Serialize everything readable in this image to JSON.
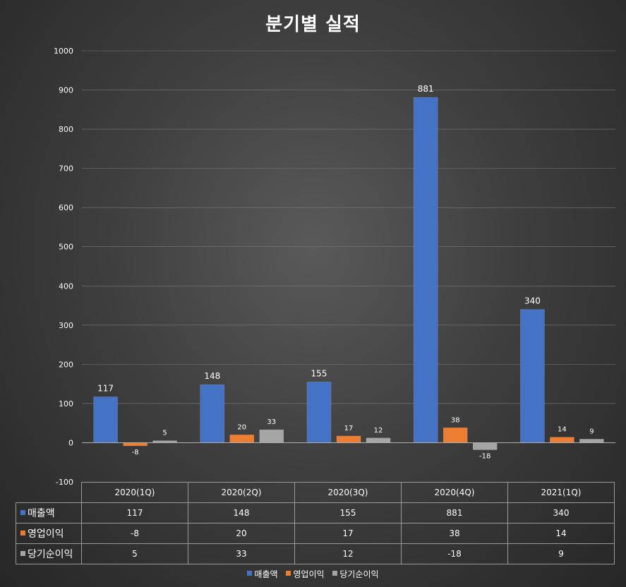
{
  "chart_data": {
    "type": "bar",
    "title": "분기별 실적",
    "categories": [
      "2020(1Q)",
      "2020(2Q)",
      "2020(3Q)",
      "2020(4Q)",
      "2021(1Q)"
    ],
    "series": [
      {
        "name": "매출액",
        "values": [
          117,
          148,
          155,
          881,
          340
        ],
        "color": "#4472c4"
      },
      {
        "name": "영업이익",
        "values": [
          -8,
          20,
          17,
          38,
          14
        ],
        "color": "#ed7d31"
      },
      {
        "name": "당기순이익",
        "values": [
          5,
          33,
          12,
          -18,
          9
        ],
        "color": "#a5a5a5"
      }
    ],
    "ylim": [
      -100,
      1000
    ],
    "yticks": [
      -100,
      0,
      100,
      200,
      300,
      400,
      500,
      600,
      700,
      800,
      900,
      1000
    ],
    "grid": true,
    "legend": "bottom",
    "data_table": true
  }
}
